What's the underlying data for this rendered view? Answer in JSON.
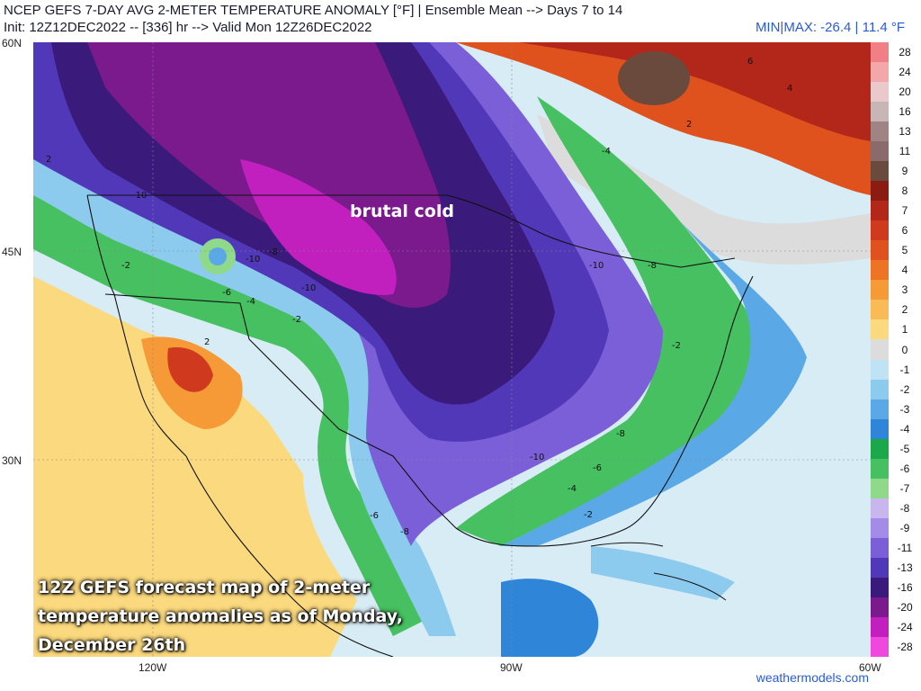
{
  "header": {
    "title": "NCEP GEFS 7-DAY AVG 2-METER TEMPERATURE ANOMALY [°F] | Ensemble Mean --> Days 7 to 14",
    "subtitle": "Init: 12Z12DEC2022 -- [336] hr --> Valid Mon 12Z26DEC2022",
    "minmax": "MIN|MAX: -26.4 | 11.4 °F"
  },
  "axes": {
    "lat_labels": [
      "60N",
      "45N",
      "30N"
    ],
    "lon_labels": [
      "120W",
      "90W",
      "60W"
    ]
  },
  "colorbar": {
    "labels": [
      "28",
      "24",
      "20",
      "16",
      "13",
      "11",
      "9",
      "8",
      "7",
      "6",
      "5",
      "4",
      "3",
      "2",
      "1",
      "0",
      "-1",
      "-2",
      "-3",
      "-4",
      "-5",
      "-6",
      "-7",
      "-8",
      "-9",
      "-11",
      "-13",
      "-16",
      "-20",
      "-24",
      "-28"
    ],
    "colors": [
      "#f07f86",
      "#f4a7a8",
      "#e9c9c9",
      "#c8b5b5",
      "#a08484",
      "#8a6a6a",
      "#6a4a3c",
      "#8a1c12",
      "#b3261a",
      "#cf3a1e",
      "#e0521d",
      "#ec7424",
      "#f59a37",
      "#f9bb55",
      "#fbd97e",
      "#dcdcdc",
      "#bfe3f4",
      "#8ccbee",
      "#5aa9e6",
      "#2f86d9",
      "#1aa84a",
      "#46c060",
      "#8fd98a",
      "#c9b6ef",
      "#a48be8",
      "#7b5fd9",
      "#5038b8",
      "#3a1a7a",
      "#7a1a8c",
      "#c21fbf",
      "#ee48df"
    ]
  },
  "annotations": {
    "brutal": "brutal cold",
    "caption": "12Z GEFS forecast map of 2-meter temperature anomalies as of Monday, December 26th"
  },
  "contour_labels": [
    "-10",
    "-8",
    "-10",
    "-6",
    "-10",
    "-2",
    "-4",
    "-2",
    "2",
    "-10",
    "-8",
    "-8",
    "-10",
    "-6",
    "-4",
    "-2",
    "-6",
    "-8",
    "-2",
    "-4",
    "2",
    "4",
    "6",
    "2"
  ],
  "credit": "weathermodels.com"
}
